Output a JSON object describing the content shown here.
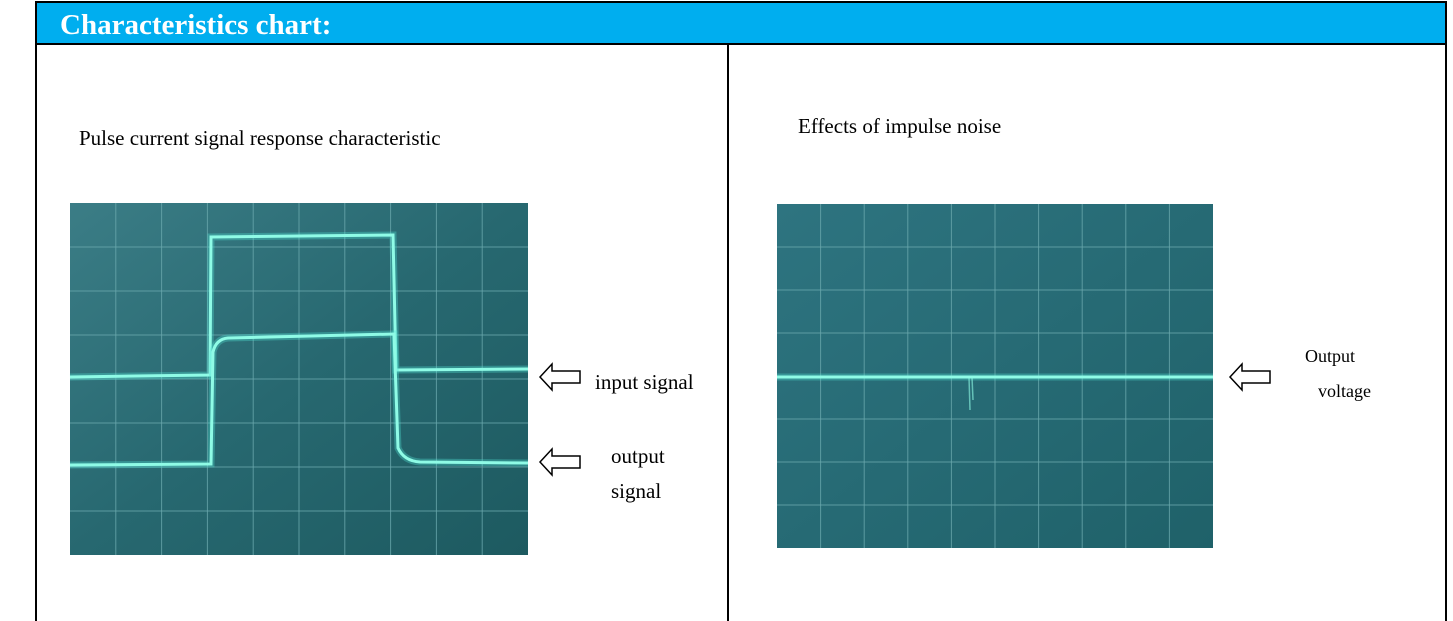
{
  "header": {
    "title": "Characteristics chart:"
  },
  "panels": [
    {
      "title": "Pulse current signal response characteristic",
      "labels": [
        {
          "lines": [
            "input signal"
          ]
        },
        {
          "lines": [
            "output",
            "signal"
          ]
        }
      ]
    },
    {
      "title": "Effects of impulse noise",
      "labels": [
        {
          "lines": [
            "Output",
            "voltage"
          ]
        }
      ]
    }
  ]
}
